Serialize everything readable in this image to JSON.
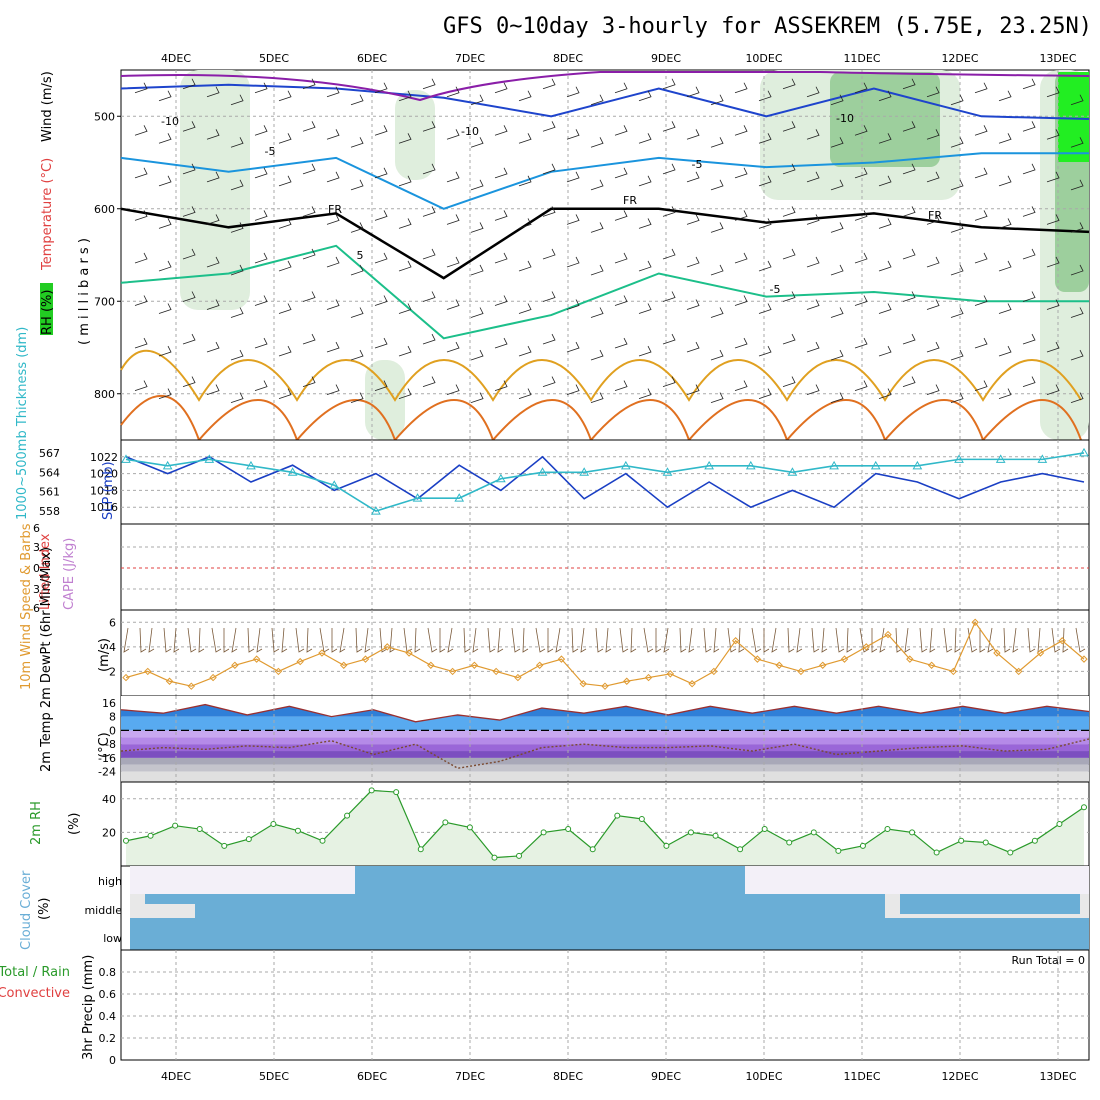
{
  "title": "GFS 0~10day 3-hourly for ASSEKREM (5.75E, 23.25N)",
  "dates": [
    "4DEC",
    "5DEC",
    "6DEC",
    "7DEC",
    "8DEC",
    "9DEC",
    "10DEC",
    "11DEC",
    "12DEC",
    "13DEC"
  ],
  "colors": {
    "rh_green": "#22cc22",
    "temp_purple": "#8a1ea8",
    "temp_blue": "#1e44cc",
    "temp_lightblue": "#1a94dd",
    "temp_teal": "#1cbf8a",
    "temp_orange": "#e0a020",
    "temp_darkorange": "#e07020",
    "slp": "#1a3fc4",
    "thickness": "#30b8c8",
    "wind10m": "#e09a30",
    "cloud": "#6aaed6",
    "rh2m": "#2a9a2a"
  },
  "chart_data": [
    {
      "type": "contour",
      "panel": "upper-air",
      "ylabel_parts": [
        "RH (%)",
        "Temperature (°C)",
        "Wind (m/s)"
      ],
      "ylabel2": "( m i l l i b a r s )",
      "yticks": [
        500,
        600,
        700,
        800
      ],
      "ylim": [
        450,
        850
      ],
      "contour_labels": [
        "-10",
        "-10",
        "-10",
        "-5",
        "-5",
        "FR",
        "FR",
        "FR",
        "5",
        "-5"
      ],
      "series": [
        {
          "name": "-10",
          "pressure_mb": [
            470,
            466,
            470,
            480,
            500,
            470,
            500,
            470,
            500,
            503
          ]
        },
        {
          "name": "-5",
          "pressure_mb": [
            545,
            560,
            545,
            600,
            560,
            545,
            555,
            550,
            540,
            540
          ]
        },
        {
          "name": "FR",
          "pressure_mb": [
            600,
            620,
            605,
            675,
            600,
            600,
            615,
            605,
            620,
            625
          ]
        },
        {
          "name": "5",
          "pressure_mb": [
            680,
            670,
            640,
            740,
            715,
            670,
            695,
            690,
            700,
            700
          ]
        }
      ]
    },
    {
      "type": "line",
      "panel": "slp-thickness",
      "ylabel_left": "1000~500mb Thickness (dm)",
      "ylabel_right": "SLP (mb)",
      "yticks_left": [
        558,
        561,
        564,
        567
      ],
      "yticks_right": [
        1016,
        1018,
        1020,
        1022
      ],
      "series": [
        {
          "name": "SLP (mb)",
          "values": [
            1022,
            1020,
            1022,
            1019,
            1021,
            1018,
            1020,
            1017,
            1021,
            1018,
            1022,
            1017,
            1020,
            1016,
            1019,
            1016,
            1018,
            1016,
            1020,
            1019,
            1017,
            1019,
            1020,
            1019
          ]
        },
        {
          "name": "Thickness (dm)",
          "values": [
            566,
            565,
            566,
            565,
            564,
            562,
            558,
            560,
            560,
            563,
            564,
            564,
            565,
            564,
            565,
            565,
            564,
            565,
            565,
            565,
            566,
            566,
            566,
            567
          ]
        }
      ]
    },
    {
      "type": "line",
      "panel": "cape-li",
      "ylabel_left": "Lifted Index",
      "ylabel_right": "CAPE (J/kg)",
      "yticks": [
        6,
        3,
        0,
        3,
        6
      ],
      "series": [
        {
          "name": "Lifted Index",
          "values": [
            0,
            0,
            0,
            0,
            0,
            0,
            0,
            0,
            0,
            0
          ]
        }
      ]
    },
    {
      "type": "line",
      "panel": "wind10m",
      "ylabel": "10m Wind Speed & Barbs",
      "yunit": "(m/s)",
      "yticks": [
        2,
        4,
        6
      ],
      "ylim": [
        0,
        7
      ],
      "series": [
        {
          "name": "10m Wind Speed",
          "values": [
            1.5,
            2,
            1.2,
            0.8,
            1.5,
            2.5,
            3,
            2,
            2.8,
            3.5,
            2.5,
            3,
            4,
            3.5,
            2.5,
            2,
            2.5,
            2,
            1.5,
            2.5,
            3,
            1,
            0.8,
            1.2,
            1.5,
            1.8,
            1,
            2,
            4.5,
            3,
            2.5,
            2,
            2.5,
            3,
            4,
            5,
            3,
            2.5,
            2,
            6,
            3.5,
            2,
            3.5,
            4.5,
            3
          ]
        }
      ]
    },
    {
      "type": "area",
      "panel": "temp2m",
      "ylabel": "2m Temp 2m DewPt (6hr Min/Max)",
      "yunit": "(°C)",
      "yticks": [
        16,
        8,
        0,
        -8,
        -16,
        -24
      ],
      "series": [
        {
          "name": "2m Temp",
          "values": [
            12,
            10,
            15,
            9,
            14,
            8,
            12,
            5,
            9,
            6,
            13,
            10,
            14,
            9,
            14,
            10,
            14,
            10,
            14,
            10,
            14,
            10,
            14,
            11
          ]
        },
        {
          "name": "2m DewPt",
          "values": [
            -12,
            -10,
            -11,
            -9,
            -10,
            -6,
            -14,
            -8,
            -22,
            -18,
            -10,
            -8,
            -10,
            -10,
            -9,
            -12,
            -8,
            -14,
            -12,
            -10,
            -9,
            -12,
            -11,
            -5
          ]
        }
      ]
    },
    {
      "type": "area",
      "panel": "rh2m",
      "ylabel": "2m RH",
      "yunit": "(%)",
      "yticks": [
        20,
        40
      ],
      "series": [
        {
          "name": "2m RH",
          "values": [
            15,
            18,
            24,
            22,
            12,
            16,
            25,
            21,
            15,
            30,
            45,
            44,
            10,
            26,
            23,
            5,
            6,
            20,
            22,
            10,
            30,
            28,
            12,
            20,
            18,
            10,
            22,
            14,
            20,
            9,
            12,
            22,
            20,
            8,
            15,
            14,
            8,
            15,
            25,
            35
          ]
        }
      ]
    },
    {
      "type": "area",
      "panel": "cloud",
      "ylabel": "Cloud Cover",
      "yunit": "(%)",
      "yticks": [
        "high",
        "middle",
        "low"
      ],
      "series": []
    },
    {
      "type": "bar",
      "panel": "precip",
      "ylabel": "3hr Precip (mm)",
      "legend": [
        "Total / Rain",
        "Convective"
      ],
      "annotation": "Run Total = 0",
      "yticks": [
        0,
        0.2,
        0.4,
        0.6,
        0.8
      ],
      "ylim": [
        0,
        1
      ],
      "series": [
        {
          "name": "3hr Precip",
          "values": [
            0,
            0,
            0,
            0,
            0,
            0,
            0,
            0,
            0,
            0
          ]
        }
      ]
    }
  ]
}
